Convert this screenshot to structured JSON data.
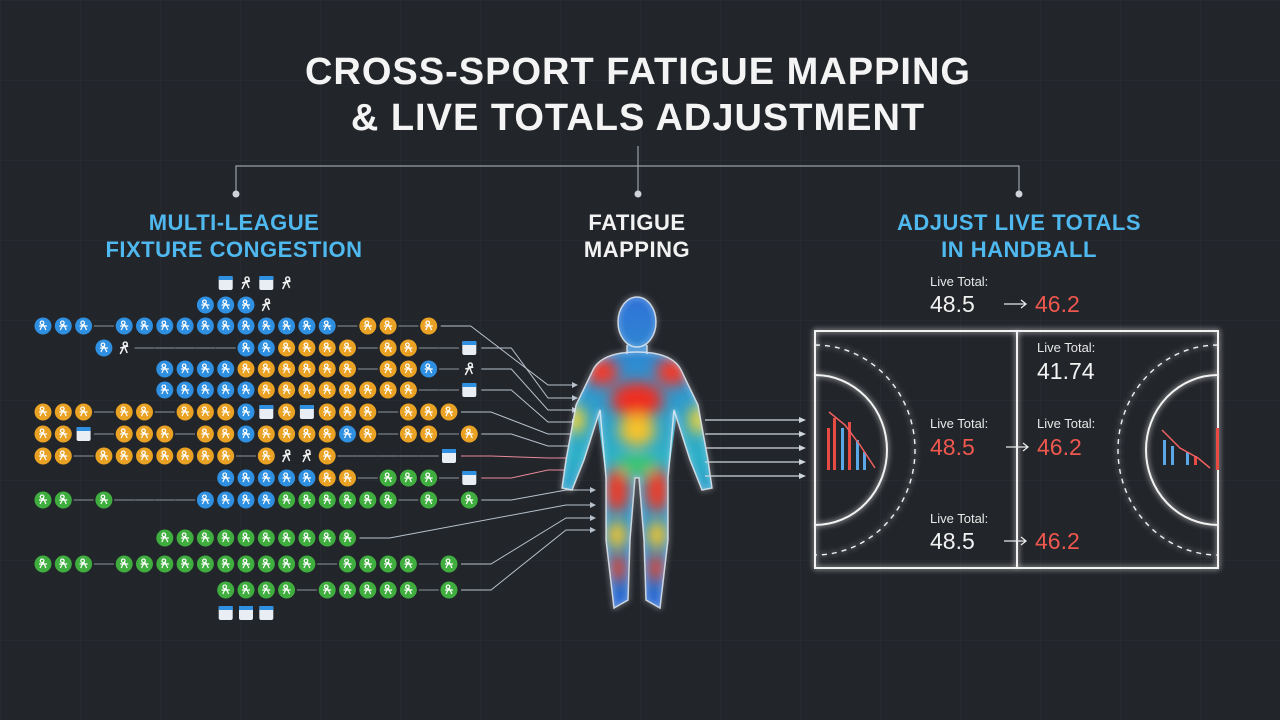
{
  "header": {
    "title": [
      "CROSS-SPORT FATIGUE MAPPING",
      "& LIVE TOTALS ADJUSTMENT"
    ]
  },
  "sections": [
    {
      "title": [
        "MULTI-LEAGUE",
        "FIXTURE CONGESTION"
      ]
    },
    {
      "title": [
        "FATIGUE",
        "MAPPING"
      ]
    },
    {
      "title": [
        "ADJUST LIVE TOTALS",
        "IN HANDBALL"
      ]
    }
  ],
  "live_totals": [
    {
      "label": "Live Total:",
      "from": 48.5,
      "to": 46.2
    },
    {
      "label": "Live Total:",
      "value": 41.74
    },
    {
      "from_label": "Live Total:",
      "from": 48.5,
      "to_label": "Live Total:",
      "to": 46.2
    },
    {
      "label": "Live Total:",
      "from": 48.5,
      "to": 46.2
    }
  ]
}
